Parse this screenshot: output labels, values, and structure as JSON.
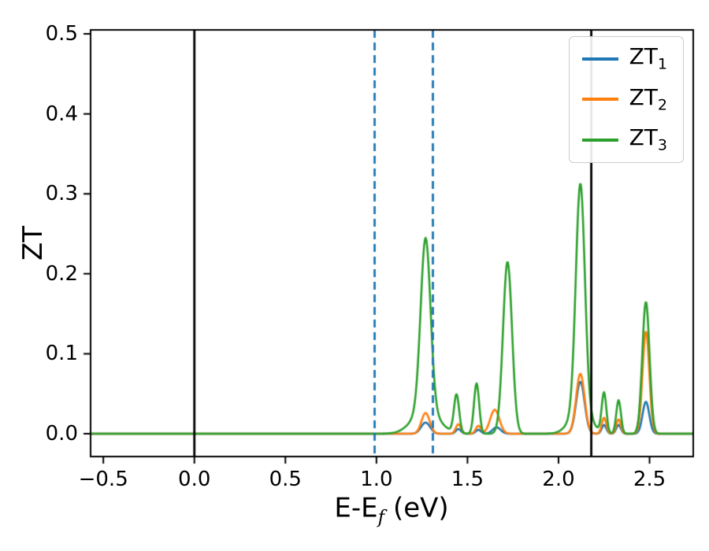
{
  "figure": {
    "background": "#ffffff",
    "axis_color": "#000000"
  },
  "chart_data": {
    "type": "line",
    "title": "",
    "xlabel": "E-E_f (eV)",
    "xlabel_parts": {
      "base": "E-E",
      "sub": "f",
      "suffix": " (eV)"
    },
    "ylabel": "ZT",
    "xlim": [
      -0.57,
      2.74
    ],
    "ylim": [
      -0.0285,
      0.505
    ],
    "xticks": [
      -0.5,
      0.0,
      0.5,
      1.0,
      1.5,
      2.0,
      2.5
    ],
    "xtick_labels": [
      "−0.5",
      "0.0",
      "0.5",
      "1.0",
      "1.5",
      "2.0",
      "2.5"
    ],
    "yticks": [
      0.0,
      0.1,
      0.2,
      0.3,
      0.4,
      0.5
    ],
    "ytick_labels": [
      "0.0",
      "0.1",
      "0.2",
      "0.3",
      "0.4",
      "0.5"
    ],
    "grid": false,
    "legend_position": "upper right",
    "sample_step": 0.004,
    "curve_line_width": 2.6,
    "vline_width": 2.8,
    "vlines": [
      {
        "x": 0.0,
        "style": "solid",
        "color": "#000000"
      },
      {
        "x": 2.18,
        "style": "solid",
        "color": "#000000"
      },
      {
        "x": 0.99,
        "style": "dashed",
        "color": "#1f77b4"
      },
      {
        "x": 1.31,
        "style": "dashed",
        "color": "#1f77b4"
      }
    ],
    "series": [
      {
        "name": "ZT1",
        "label_base": "ZT",
        "label_sub": "1",
        "color": "#1f77b4",
        "peaks": [
          {
            "c": 1.27,
            "h": 0.014,
            "w": 0.035
          },
          {
            "c": 1.45,
            "h": 0.006,
            "w": 0.02
          },
          {
            "c": 1.56,
            "h": 0.005,
            "w": 0.02
          },
          {
            "c": 1.66,
            "h": 0.008,
            "w": 0.032
          },
          {
            "c": 2.12,
            "h": 0.065,
            "w": 0.033
          },
          {
            "c": 2.25,
            "h": 0.011,
            "w": 0.018
          },
          {
            "c": 2.33,
            "h": 0.011,
            "w": 0.018
          },
          {
            "c": 2.48,
            "h": 0.04,
            "w": 0.026
          }
        ]
      },
      {
        "name": "ZT2",
        "label_base": "ZT",
        "label_sub": "2",
        "color": "#ff7f0e",
        "peaks": [
          {
            "c": 1.27,
            "h": 0.026,
            "w": 0.032
          },
          {
            "c": 1.45,
            "h": 0.012,
            "w": 0.02
          },
          {
            "c": 1.56,
            "h": 0.01,
            "w": 0.02
          },
          {
            "c": 1.65,
            "h": 0.03,
            "w": 0.036
          },
          {
            "c": 2.12,
            "h": 0.075,
            "w": 0.033
          },
          {
            "c": 2.25,
            "h": 0.02,
            "w": 0.018
          },
          {
            "c": 2.33,
            "h": 0.018,
            "w": 0.018
          },
          {
            "c": 2.48,
            "h": 0.128,
            "w": 0.026
          }
        ]
      },
      {
        "name": "ZT3",
        "label_base": "ZT",
        "label_sub": "3",
        "color": "#2ca02c",
        "peaks": [
          {
            "c": 1.27,
            "h": 0.03,
            "w": 0.1
          },
          {
            "c": 1.27,
            "h": 0.215,
            "w": 0.038
          },
          {
            "c": 1.44,
            "h": 0.048,
            "w": 0.02
          },
          {
            "c": 1.55,
            "h": 0.063,
            "w": 0.02
          },
          {
            "c": 1.72,
            "h": 0.215,
            "w": 0.035
          },
          {
            "c": 2.12,
            "h": 0.028,
            "w": 0.08
          },
          {
            "c": 2.12,
            "h": 0.285,
            "w": 0.035
          },
          {
            "c": 2.25,
            "h": 0.05,
            "w": 0.018
          },
          {
            "c": 2.33,
            "h": 0.042,
            "w": 0.018
          },
          {
            "c": 2.48,
            "h": 0.165,
            "w": 0.028
          }
        ]
      }
    ]
  }
}
